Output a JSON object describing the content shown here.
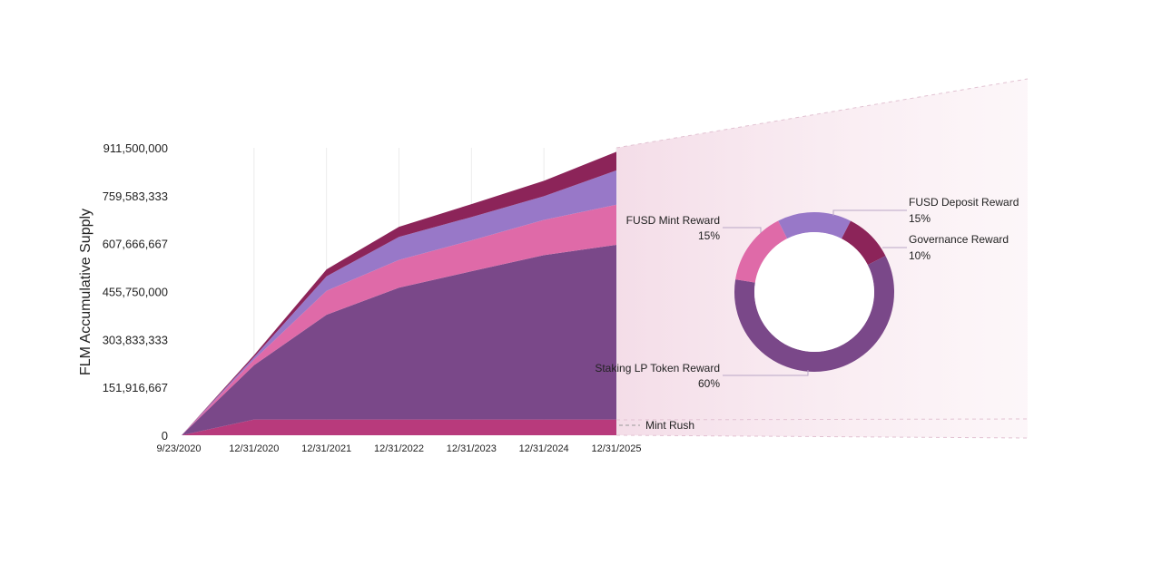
{
  "chart_data": [
    {
      "type": "area",
      "stacked": true,
      "ylabel": "FLM Accumulative Supply",
      "xlabel": "",
      "x": [
        "9/23/2020",
        "12/31/2020",
        "12/31/2021",
        "12/31/2022",
        "12/31/2023",
        "12/31/2024",
        "12/31/2025"
      ],
      "x_tick_labels": [
        "9/23/2020",
        "12/31/2020",
        "12/31/2021",
        "12/31/2022",
        "12/31/2023",
        "12/31/2024",
        "12/31/2025"
      ],
      "y_tick_labels": [
        "0",
        "151,916,667",
        "303,833,333",
        "455,750,000",
        "607,666,667",
        "759,583,333",
        "911,500,000"
      ],
      "ylim": [
        0,
        911500000
      ],
      "grid": "vertical",
      "series": [
        {
          "name": "Mint Rush",
          "color": "#b83a7c",
          "values": [
            0,
            50000000,
            50000000,
            50000000,
            50000000,
            50000000,
            50000000
          ]
        },
        {
          "name": "",
          "color": "#7a4889",
          "values": [
            0,
            172000000,
            332000000,
            418000000,
            470000000,
            521000000,
            554000000
          ]
        },
        {
          "name": "",
          "color": "#df6aa8",
          "values": [
            0,
            18000000,
            76000000,
            88000000,
            98000000,
            112000000,
            127000000
          ]
        },
        {
          "name": "",
          "color": "#9878c8",
          "values": [
            0,
            8000000,
            46000000,
            73000000,
            74000000,
            75000000,
            109000000
          ]
        },
        {
          "name": "",
          "color": "#8c2459",
          "values": [
            0,
            6000000,
            22000000,
            32000000,
            41000000,
            49000000,
            59000000
          ]
        }
      ]
    },
    {
      "type": "pie",
      "donut": true,
      "slices": [
        {
          "label": "FUSD Deposit Reward",
          "value": 15,
          "value_label": "15%",
          "color": "#9878c8"
        },
        {
          "label": "Governance Reward",
          "value": 10,
          "value_label": "10%",
          "color": "#8c2459"
        },
        {
          "label": "Staking LP Token Reward",
          "value": 60,
          "value_label": "60%",
          "color": "#7a4889"
        },
        {
          "label": "FUSD Mint Reward",
          "value": 15,
          "value_label": "15%",
          "color": "#df6aa8"
        }
      ]
    }
  ]
}
